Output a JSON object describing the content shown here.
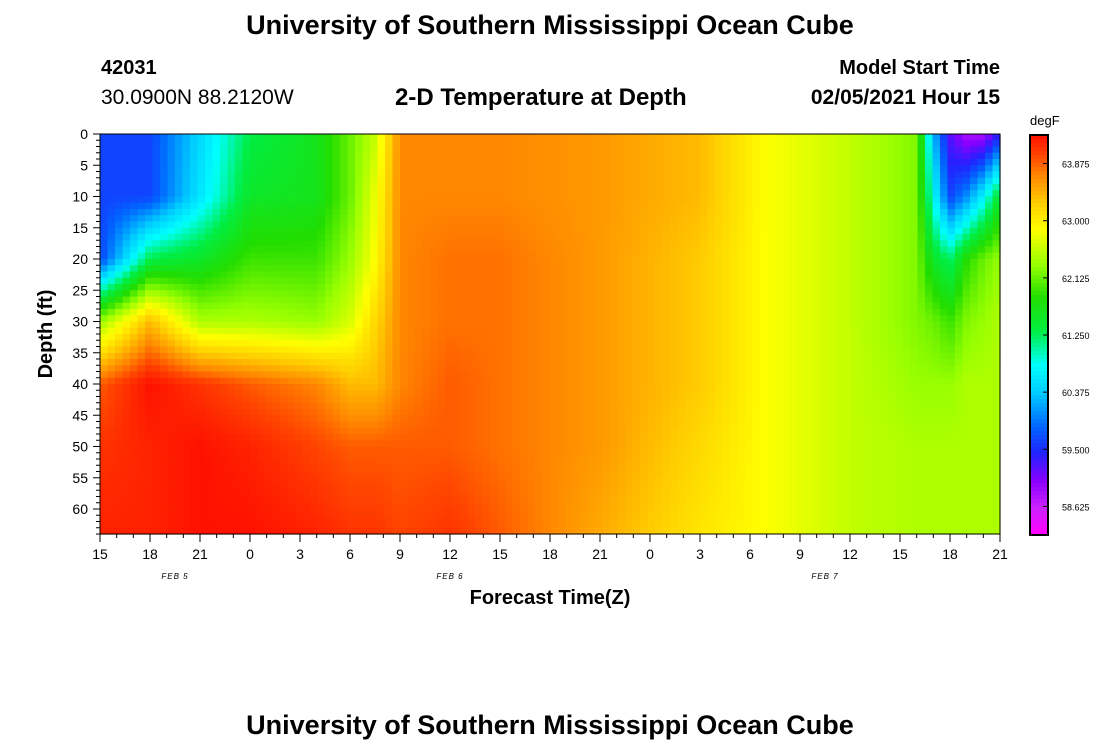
{
  "header": {
    "title": "University of Southern Mississippi Ocean Cube",
    "station_id": "42031",
    "station_coords": "30.0900N 88.2120W",
    "chart_title": "2-D Temperature at Depth",
    "model_label": "Model Start Time",
    "model_date": "02/05/2021 Hour 15"
  },
  "footer": {
    "title": "University of Southern Mississippi Ocean Cube"
  },
  "chart_data": {
    "type": "heatmap",
    "title": "2-D Temperature at Depth",
    "xlabel": "Forecast Time(Z)",
    "ylabel": "Depth (ft)",
    "xlim": [
      0,
      54
    ],
    "ylim": [
      0,
      64
    ],
    "x_ticks": [
      "15",
      "18",
      "21",
      "0",
      "3",
      "6",
      "9",
      "12",
      "15",
      "18",
      "21",
      "0",
      "3",
      "6",
      "9",
      "12",
      "15",
      "18",
      "21"
    ],
    "y_ticks": [
      0,
      5,
      10,
      15,
      20,
      25,
      30,
      35,
      40,
      45,
      50,
      55,
      60
    ],
    "day_labels": [
      {
        "label": "FEB 5",
        "x": 4.5
      },
      {
        "label": "FEB 6",
        "x": 21
      },
      {
        "label": "FEB 7",
        "x": 43.5
      }
    ],
    "colorbar": {
      "unit": "degF",
      "range": [
        58.4,
        64.3
      ],
      "ticks": [
        "63.875",
        "63.000",
        "62.125",
        "61.250",
        "60.375",
        "59.500",
        "58.625"
      ]
    },
    "palette": [
      {
        "v": 58.4,
        "c": "#ff00ff"
      },
      {
        "v": 58.8,
        "c": "#cc22ff"
      },
      {
        "v": 59.2,
        "c": "#8800ff"
      },
      {
        "v": 59.6,
        "c": "#2222ff"
      },
      {
        "v": 60.0,
        "c": "#0066ff"
      },
      {
        "v": 60.5,
        "c": "#00ccff"
      },
      {
        "v": 60.9,
        "c": "#00ffff"
      },
      {
        "v": 61.4,
        "c": "#00ee44"
      },
      {
        "v": 61.9,
        "c": "#22dd00"
      },
      {
        "v": 62.4,
        "c": "#99ff00"
      },
      {
        "v": 62.9,
        "c": "#ffff00"
      },
      {
        "v": 63.3,
        "c": "#ffcc00"
      },
      {
        "v": 63.7,
        "c": "#ff8800"
      },
      {
        "v": 64.0,
        "c": "#ff4400"
      },
      {
        "v": 64.3,
        "c": "#ff1100"
      }
    ],
    "depths": [
      0,
      10,
      20,
      30,
      40,
      50,
      64
    ],
    "grid": [
      {
        "x": 0,
        "t": [
          59.8,
          59.8,
          59.8,
          62.4,
          63.9,
          64.1,
          64.2
        ]
      },
      {
        "x": 3,
        "t": [
          59.8,
          59.8,
          61.4,
          63.4,
          64.3,
          64.2,
          64.2
        ]
      },
      {
        "x": 6,
        "t": [
          60.6,
          60.7,
          61.6,
          62.5,
          64.1,
          64.3,
          64.3
        ]
      },
      {
        "x": 9,
        "t": [
          61.4,
          61.6,
          62.0,
          62.5,
          63.9,
          64.2,
          64.3
        ]
      },
      {
        "x": 13,
        "t": [
          61.7,
          61.7,
          62.0,
          62.4,
          63.7,
          64.0,
          64.2
        ]
      },
      {
        "x": 15,
        "t": [
          62.2,
          62.2,
          62.4,
          62.7,
          63.4,
          63.9,
          64.1
        ]
      },
      {
        "x": 16.5,
        "t": [
          62.6,
          62.8,
          62.9,
          63.2,
          63.4,
          63.9,
          64.1
        ]
      },
      {
        "x": 18,
        "t": [
          63.7,
          63.7,
          63.7,
          63.7,
          63.7,
          63.9,
          64.0
        ]
      },
      {
        "x": 21,
        "t": [
          63.7,
          63.7,
          63.8,
          63.8,
          63.9,
          63.9,
          64.1
        ]
      },
      {
        "x": 24,
        "t": [
          63.7,
          63.7,
          63.8,
          63.8,
          63.8,
          63.8,
          63.9
        ]
      },
      {
        "x": 30,
        "t": [
          63.6,
          63.6,
          63.6,
          63.6,
          63.6,
          63.6,
          63.5
        ]
      },
      {
        "x": 36,
        "t": [
          63.4,
          63.4,
          63.3,
          63.3,
          63.3,
          63.2,
          63.1
        ]
      },
      {
        "x": 40,
        "t": [
          62.9,
          62.9,
          62.9,
          62.9,
          62.9,
          62.9,
          62.9
        ]
      },
      {
        "x": 45,
        "t": [
          62.6,
          62.6,
          62.6,
          62.6,
          62.6,
          62.6,
          62.6
        ]
      },
      {
        "x": 49,
        "t": [
          62.3,
          62.3,
          62.3,
          62.3,
          62.4,
          62.5,
          62.5
        ]
      },
      {
        "x": 50,
        "t": [
          60.4,
          60.9,
          61.6,
          62.2,
          62.4,
          62.5,
          62.5
        ]
      },
      {
        "x": 51,
        "t": [
          59.4,
          59.8,
          61.3,
          62.0,
          62.4,
          62.5,
          62.5
        ]
      },
      {
        "x": 52,
        "t": [
          59.0,
          60.2,
          61.9,
          62.3,
          62.5,
          62.5,
          62.5
        ]
      },
      {
        "x": 53,
        "t": [
          59.0,
          60.8,
          62.2,
          62.4,
          62.5,
          62.5,
          62.5
        ]
      },
      {
        "x": 54,
        "t": [
          59.6,
          61.6,
          62.4,
          62.5,
          62.5,
          62.5,
          62.5
        ]
      }
    ]
  }
}
